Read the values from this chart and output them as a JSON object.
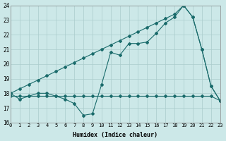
{
  "xlabel": "Humidex (Indice chaleur)",
  "bg_color": "#cce8e8",
  "grid_color": "#aacccc",
  "line_color": "#1a6b6b",
  "xmin": 0,
  "xmax": 23,
  "ymin": 16,
  "ymax": 24,
  "series1_x": [
    0,
    1,
    2,
    3,
    4,
    5,
    6,
    7,
    8,
    9,
    10,
    11,
    12,
    13,
    14,
    15,
    16,
    17,
    18,
    19,
    20,
    21,
    22,
    23
  ],
  "series1_y": [
    17.8,
    17.8,
    17.8,
    17.8,
    17.8,
    17.8,
    17.8,
    17.8,
    17.8,
    17.8,
    17.8,
    17.8,
    17.8,
    17.8,
    17.8,
    17.8,
    17.8,
    17.8,
    17.8,
    17.8,
    17.8,
    17.8,
    17.8,
    17.5
  ],
  "series2_x": [
    0,
    1,
    2,
    3,
    4,
    5,
    6,
    7,
    8,
    9,
    10,
    11,
    12,
    13,
    14,
    15,
    16,
    17,
    18,
    19,
    20,
    21,
    22,
    23
  ],
  "series2_y": [
    18.0,
    17.6,
    17.8,
    18.0,
    18.0,
    17.8,
    17.6,
    17.3,
    16.5,
    16.6,
    18.6,
    20.8,
    20.6,
    21.4,
    21.4,
    21.5,
    22.1,
    22.8,
    23.2,
    24.0,
    23.2,
    21.0,
    18.5,
    17.5
  ],
  "series3_x": [
    0,
    1,
    2,
    3,
    4,
    5,
    6,
    7,
    8,
    9,
    10,
    11,
    12,
    13,
    14,
    15,
    16,
    17,
    18,
    19,
    20,
    21,
    22,
    23
  ],
  "series3_y": [
    18.0,
    18.3,
    18.6,
    18.9,
    19.2,
    19.5,
    19.8,
    20.1,
    20.4,
    20.7,
    21.0,
    21.3,
    21.6,
    21.9,
    22.2,
    22.5,
    22.8,
    23.1,
    23.4,
    24.0,
    23.2,
    21.0,
    18.5,
    17.5
  ]
}
